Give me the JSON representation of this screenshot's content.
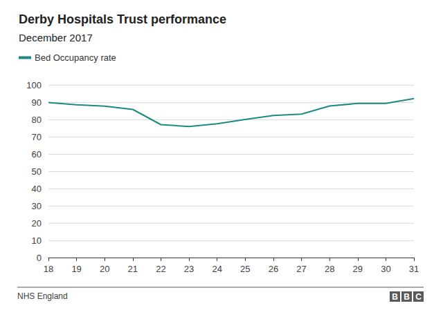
{
  "chart_data": {
    "type": "line",
    "title": "Derby Hospitals Trust performance",
    "subtitle": "December 2017",
    "categories": [
      "18",
      "19",
      "20",
      "21",
      "22",
      "23",
      "24",
      "25",
      "26",
      "27",
      "28",
      "29",
      "30",
      "31"
    ],
    "series": [
      {
        "name": "Bed Occupancy rate",
        "color": "#1a8a85",
        "values": [
          89.8,
          88.5,
          87.7,
          85.8,
          77.0,
          75.9,
          77.5,
          80.0,
          82.3,
          83.1,
          87.8,
          89.3,
          89.3,
          92.1
        ]
      }
    ],
    "ylim": [
      0,
      100
    ],
    "yticks": [
      0,
      10,
      20,
      30,
      40,
      50,
      60,
      70,
      80,
      90,
      100
    ],
    "grid": true,
    "source": "NHS England",
    "credit": "BBC"
  }
}
